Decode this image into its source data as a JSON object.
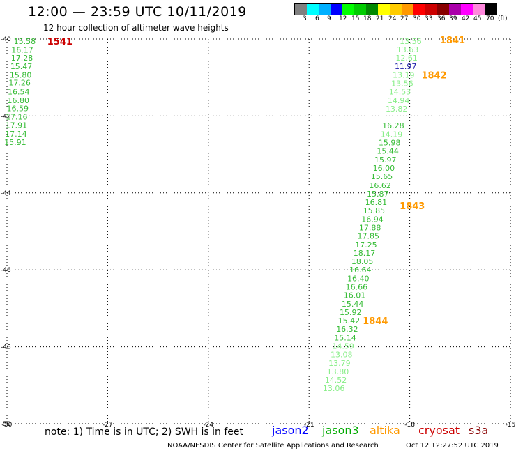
{
  "header": {
    "title": "12:00 — 23:59 UTC 10/11/2019",
    "subtitle": "12 hour collection of altimeter wave heights"
  },
  "legend": {
    "colors": [
      "#808080",
      "#00ffff",
      "#00b0ff",
      "#0000ff",
      "#00ff00",
      "#00cc00",
      "#008800",
      "#ffff00",
      "#ffcc00",
      "#ff9900",
      "#ff0000",
      "#cc0000",
      "#880000",
      "#aa00aa",
      "#ff00ff",
      "#ff88dd",
      "#000000"
    ],
    "labels": [
      "3",
      "6",
      "9",
      "12",
      "15",
      "18",
      "21",
      "24",
      "27",
      "30",
      "33",
      "36",
      "39",
      "42",
      "45",
      "70",
      "(ft)"
    ]
  },
  "axes": {
    "lon_ticks": [
      "-30",
      "-27",
      "-24",
      "-21",
      "-18",
      "-15"
    ],
    "lat_ticks": [
      "-40",
      "-42",
      "-44",
      "-46",
      "-48",
      "-50"
    ]
  },
  "chart_data": {
    "type": "scatter",
    "xlim": [
      -30,
      -15
    ],
    "ylim": [
      -50,
      -40
    ],
    "grid": true,
    "observations": [
      {
        "lon": -29.8,
        "lat": -40.05,
        "v": "15.58",
        "c": "#33bb33"
      },
      {
        "lon": -29.87,
        "lat": -40.28,
        "v": "16.17",
        "c": "#33bb33"
      },
      {
        "lon": -29.88,
        "lat": -40.49,
        "v": "17.28",
        "c": "#33bb33"
      },
      {
        "lon": -29.9,
        "lat": -40.71,
        "v": "15.47",
        "c": "#33bb33"
      },
      {
        "lon": -29.92,
        "lat": -40.93,
        "v": "15.80",
        "c": "#33bb33"
      },
      {
        "lon": -29.95,
        "lat": -41.13,
        "v": "17.26",
        "c": "#33bb33"
      },
      {
        "lon": -29.98,
        "lat": -41.37,
        "v": "16.54",
        "c": "#33bb33"
      },
      {
        "lon": -29.99,
        "lat": -41.59,
        "v": "16.80",
        "c": "#33bb33"
      },
      {
        "lon": -30.01,
        "lat": -41.8,
        "v": "16.59",
        "c": "#33bb33"
      },
      {
        "lon": -30.04,
        "lat": -42.02,
        "v": "17.16",
        "c": "#33bb33"
      },
      {
        "lon": -30.05,
        "lat": -42.24,
        "v": "17.91",
        "c": "#33bb33"
      },
      {
        "lon": -30.06,
        "lat": -42.46,
        "v": "17.14",
        "c": "#33bb33"
      },
      {
        "lon": -30.08,
        "lat": -42.68,
        "v": "15.91",
        "c": "#33bb33"
      },
      {
        "lon": -18.3,
        "lat": -40.05,
        "v": "13.56",
        "c": "#88ee88"
      },
      {
        "lon": -18.39,
        "lat": -40.27,
        "v": "13.63",
        "c": "#88ee88"
      },
      {
        "lon": -18.42,
        "lat": -40.49,
        "v": "12.61",
        "c": "#88ee88"
      },
      {
        "lon": -18.45,
        "lat": -40.71,
        "v": "11.97",
        "c": "#2222aa"
      },
      {
        "lon": -18.51,
        "lat": -40.93,
        "v": "13.19",
        "c": "#88ee88"
      },
      {
        "lon": -18.55,
        "lat": -41.15,
        "v": "13.56",
        "c": "#88ee88"
      },
      {
        "lon": -18.62,
        "lat": -41.37,
        "v": "14.53",
        "c": "#88ee88"
      },
      {
        "lon": -18.66,
        "lat": -41.59,
        "v": "14.94",
        "c": "#88ee88"
      },
      {
        "lon": -18.72,
        "lat": -41.81,
        "v": "13.82",
        "c": "#88ee88"
      },
      {
        "lon": -18.82,
        "lat": -42.25,
        "v": "16.28",
        "c": "#33bb33"
      },
      {
        "lon": -18.87,
        "lat": -42.47,
        "v": "14.19",
        "c": "#88ee88"
      },
      {
        "lon": -18.93,
        "lat": -42.69,
        "v": "15.98",
        "c": "#33bb33"
      },
      {
        "lon": -18.98,
        "lat": -42.91,
        "v": "15.44",
        "c": "#33bb33"
      },
      {
        "lon": -19.05,
        "lat": -43.13,
        "v": "15.97",
        "c": "#33bb33"
      },
      {
        "lon": -19.1,
        "lat": -43.35,
        "v": "16.00",
        "c": "#33bb33"
      },
      {
        "lon": -19.16,
        "lat": -43.57,
        "v": "15.65",
        "c": "#33bb33"
      },
      {
        "lon": -19.21,
        "lat": -43.8,
        "v": "16.62",
        "c": "#33bb33"
      },
      {
        "lon": -19.28,
        "lat": -44.02,
        "v": "15.87",
        "c": "#33bb33"
      },
      {
        "lon": -19.33,
        "lat": -44.24,
        "v": "16.81",
        "c": "#33bb33"
      },
      {
        "lon": -19.39,
        "lat": -44.46,
        "v": "15.85",
        "c": "#33bb33"
      },
      {
        "lon": -19.44,
        "lat": -44.68,
        "v": "16.94",
        "c": "#33bb33"
      },
      {
        "lon": -19.51,
        "lat": -44.9,
        "v": "17.88",
        "c": "#33bb33"
      },
      {
        "lon": -19.56,
        "lat": -45.12,
        "v": "17.85",
        "c": "#33bb33"
      },
      {
        "lon": -19.63,
        "lat": -45.34,
        "v": "17.25",
        "c": "#33bb33"
      },
      {
        "lon": -19.68,
        "lat": -45.56,
        "v": "18.17",
        "c": "#33bb33"
      },
      {
        "lon": -19.74,
        "lat": -45.78,
        "v": "18.05",
        "c": "#33bb33"
      },
      {
        "lon": -19.8,
        "lat": -46.0,
        "v": "16.64",
        "c": "#33bb33"
      },
      {
        "lon": -19.86,
        "lat": -46.22,
        "v": "16.40",
        "c": "#33bb33"
      },
      {
        "lon": -19.91,
        "lat": -46.44,
        "v": "16.66",
        "c": "#33bb33"
      },
      {
        "lon": -19.97,
        "lat": -46.66,
        "v": "16.01",
        "c": "#33bb33"
      },
      {
        "lon": -20.03,
        "lat": -46.88,
        "v": "15.44",
        "c": "#33bb33"
      },
      {
        "lon": -20.09,
        "lat": -47.1,
        "v": "15.92",
        "c": "#33bb33"
      },
      {
        "lon": -20.14,
        "lat": -47.32,
        "v": "15.42",
        "c": "#33bb33"
      },
      {
        "lon": -20.19,
        "lat": -47.54,
        "v": "16.32",
        "c": "#33bb33"
      },
      {
        "lon": -20.25,
        "lat": -47.76,
        "v": "15.14",
        "c": "#33bb33"
      },
      {
        "lon": -20.31,
        "lat": -47.98,
        "v": "14.59",
        "c": "#88ee88"
      },
      {
        "lon": -20.36,
        "lat": -48.2,
        "v": "13.08",
        "c": "#88ee88"
      },
      {
        "lon": -20.42,
        "lat": -48.42,
        "v": "13.79",
        "c": "#88ee88"
      },
      {
        "lon": -20.47,
        "lat": -48.64,
        "v": "13.80",
        "c": "#88ee88"
      },
      {
        "lon": -20.53,
        "lat": -48.86,
        "v": "14.52",
        "c": "#88ee88"
      },
      {
        "lon": -20.59,
        "lat": -49.08,
        "v": "13.06",
        "c": "#88ee88"
      }
    ],
    "pass_labels": [
      {
        "lon": -28.8,
        "lat": -40.05,
        "text": "1541",
        "c": "#cc0000"
      },
      {
        "lon": -17.1,
        "lat": -40.02,
        "text": "1841",
        "c": "#ff9900"
      },
      {
        "lon": -17.65,
        "lat": -40.93,
        "text": "1842",
        "c": "#ff9900"
      },
      {
        "lon": -18.3,
        "lat": -44.33,
        "text": "1843",
        "c": "#ff9900"
      },
      {
        "lon": -19.4,
        "lat": -47.32,
        "text": "1844",
        "c": "#ff9900"
      }
    ]
  },
  "footer": {
    "note": "note: 1) Time is in UTC; 2) SWH is in feet",
    "satellites": [
      {
        "name": "jason2",
        "color": "#0000ff"
      },
      {
        "name": "jason3",
        "color": "#00aa00"
      },
      {
        "name": "altika",
        "color": "#ff9900"
      },
      {
        "name": "cryosat",
        "color": "#cc0000"
      },
      {
        "name": "s3a",
        "color": "#880000"
      }
    ],
    "credit": "NOAA/NESDIS Center for Satellite Applications and Research",
    "timestamp": "Oct 12 12:27:52 UTC 2019"
  }
}
